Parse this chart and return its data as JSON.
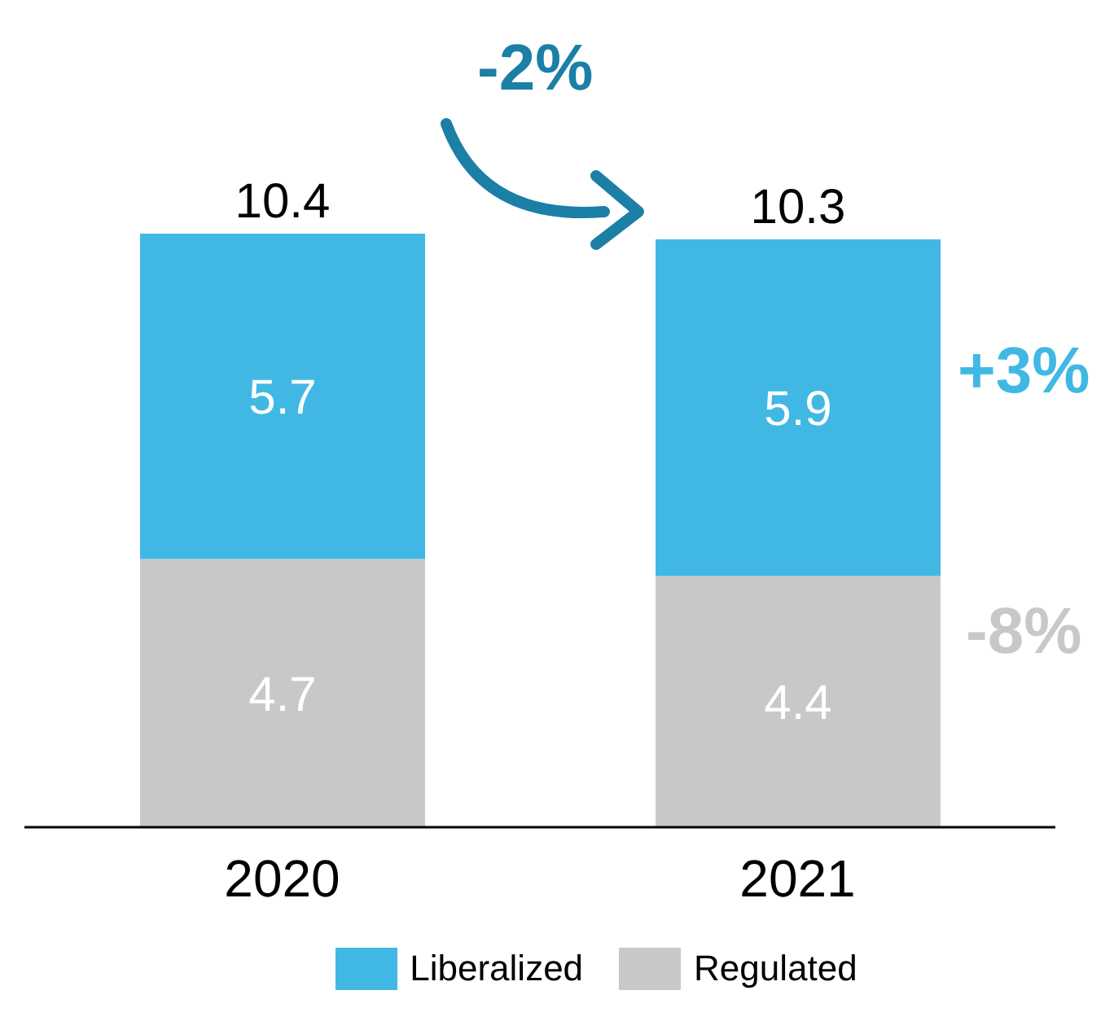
{
  "chart_data": {
    "type": "bar",
    "categories": [
      "2020",
      "2021"
    ],
    "stacked": true,
    "data_labels": true,
    "legend": "bottom",
    "series": [
      {
        "name": "Regulated",
        "color": "#c8c8c8",
        "values": [
          4.7,
          4.4
        ]
      },
      {
        "name": "Liberalized",
        "color": "#41b8e4",
        "values": [
          5.7,
          5.9
        ]
      }
    ],
    "totals": [
      "10.4",
      "10.3"
    ],
    "annotations": [
      "-2%",
      "+3%",
      "-8%"
    ]
  }
}
